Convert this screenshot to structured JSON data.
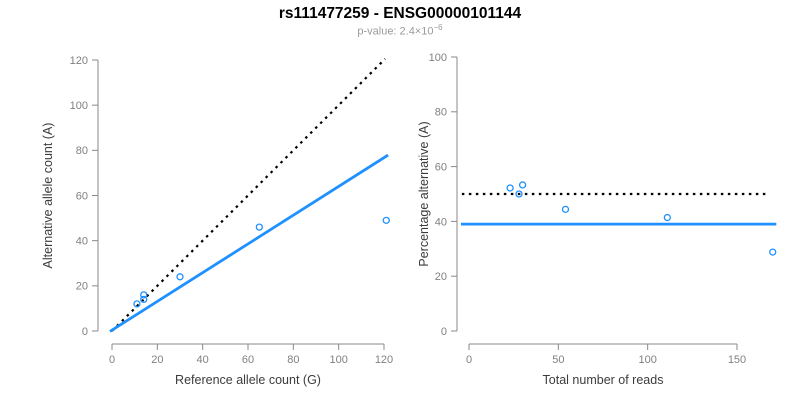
{
  "header": {
    "title": "rs111477259 - ENSG00000101144",
    "subtitle_base": "p-value: 2.4×10",
    "subtitle_exponent": "−6"
  },
  "colors": {
    "accent_blue": "#1E90FF",
    "dotted_line": "#000000",
    "axis_gray": "#888888",
    "tick_label_gray": "#808080",
    "axis_label_dark": "#3c3c3c",
    "subtitle_gray": "#9b9b9b"
  },
  "chart_data": [
    {
      "type": "scatter",
      "name": "allele-counts-panel",
      "xlabel": "Reference allele count (G)",
      "ylabel": "Alternative allele count (A)",
      "xlim": [
        0,
        120
      ],
      "ylim": [
        0,
        120
      ],
      "xticks": [
        0,
        20,
        40,
        60,
        80,
        100,
        120
      ],
      "yticks": [
        0,
        20,
        40,
        60,
        80,
        100,
        120
      ],
      "grid": false,
      "marker": "open-circle",
      "points": [
        {
          "x": 11,
          "y": 12
        },
        {
          "x": 14,
          "y": 14
        },
        {
          "x": 14,
          "y": 16
        },
        {
          "x": 30,
          "y": 24
        },
        {
          "x": 65,
          "y": 46
        },
        {
          "x": 121,
          "y": 49
        }
      ],
      "lines": [
        {
          "name": "identity-line",
          "style": "dotted",
          "color": "#000000",
          "width": 2.2,
          "x": [
            0,
            120.5
          ],
          "y": [
            0,
            120.5
          ]
        },
        {
          "name": "fit-line",
          "style": "solid",
          "color": "#1E90FF",
          "width": 2.8,
          "x": [
            -0.9,
            121.8
          ],
          "y": [
            -0.2,
            77.9
          ]
        }
      ]
    },
    {
      "type": "scatter",
      "name": "percentage-panel",
      "xlabel": "Total number of reads",
      "ylabel": "Percentage alternative (A)",
      "xlim": [
        0,
        150
      ],
      "ylim": [
        0,
        100
      ],
      "xticks": [
        0,
        50,
        100,
        150
      ],
      "yticks": [
        0,
        20,
        40,
        60,
        80,
        100
      ],
      "grid": false,
      "marker": "open-circle",
      "points": [
        {
          "x": 23,
          "y": 52.2
        },
        {
          "x": 28,
          "y": 50.0
        },
        {
          "x": 30,
          "y": 53.3
        },
        {
          "x": 54,
          "y": 44.4
        },
        {
          "x": 111,
          "y": 41.4
        },
        {
          "x": 170,
          "y": 28.8
        }
      ],
      "lines": [
        {
          "name": "expected-50pct-line",
          "style": "dotted",
          "color": "#000000",
          "width": 2.2,
          "x": [
            -4,
            168
          ],
          "y": [
            50,
            50
          ]
        },
        {
          "name": "fit-line",
          "style": "solid",
          "color": "#1E90FF",
          "width": 2.8,
          "x": [
            -4.5,
            172
          ],
          "y": [
            39,
            39
          ]
        }
      ]
    }
  ]
}
